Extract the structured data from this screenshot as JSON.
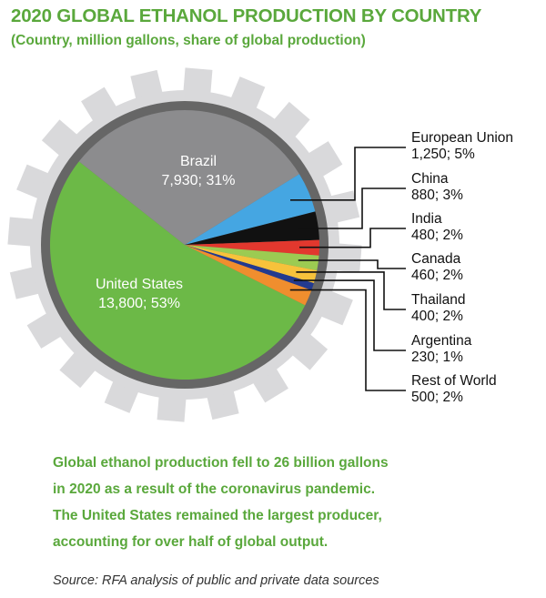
{
  "title": "2020 GLOBAL ETHANOL PRODUCTION BY COUNTRY",
  "subtitle": "(Country, million gallons, share of global production)",
  "colors": {
    "accent_green": "#5aa83c",
    "gear": "#d9d9db",
    "pie_shadow": "#666666"
  },
  "chart_data": {
    "type": "pie",
    "title": "2020 GLOBAL ETHANOL PRODUCTION BY COUNTRY",
    "subtitle": "(Country, million gallons, share of global production)",
    "units": "million gallons",
    "slices": [
      {
        "label": "United States",
        "value": 13800,
        "value_text": "13,800",
        "share_text": "53%",
        "color": "#6cb947"
      },
      {
        "label": "Brazil",
        "value": 7930,
        "value_text": "7,930",
        "share_text": "31%",
        "color": "#8c8c8e"
      },
      {
        "label": "European Union",
        "value": 1250,
        "value_text": "1,250",
        "share_text": "5%",
        "color": "#45a6e2"
      },
      {
        "label": "China",
        "value": 880,
        "value_text": "880",
        "share_text": "3%",
        "color": "#111111"
      },
      {
        "label": "India",
        "value": 480,
        "value_text": "480",
        "share_text": "2%",
        "color": "#e2382e"
      },
      {
        "label": "Canada",
        "value": 460,
        "value_text": "460",
        "share_text": "2%",
        "color": "#9ccb52"
      },
      {
        "label": "Thailand",
        "value": 400,
        "value_text": "400",
        "share_text": "2%",
        "color": "#f7c23b"
      },
      {
        "label": "Argentina",
        "value": 230,
        "value_text": "230",
        "share_text": "1%",
        "color": "#233a8f"
      },
      {
        "label": "Rest of World",
        "value": 500,
        "value_text": "500",
        "share_text": "2%",
        "color": "#f08e2e"
      }
    ],
    "legend": "callouts-right"
  },
  "caption_lines": [
    "Global ethanol production fell to 26 billion gallons",
    "in 2020 as a result of the coronavirus pandemic.",
    "The United States remained the largest producer,",
    "accounting for over half of global output."
  ],
  "source": "Source: RFA analysis of public and private data sources"
}
